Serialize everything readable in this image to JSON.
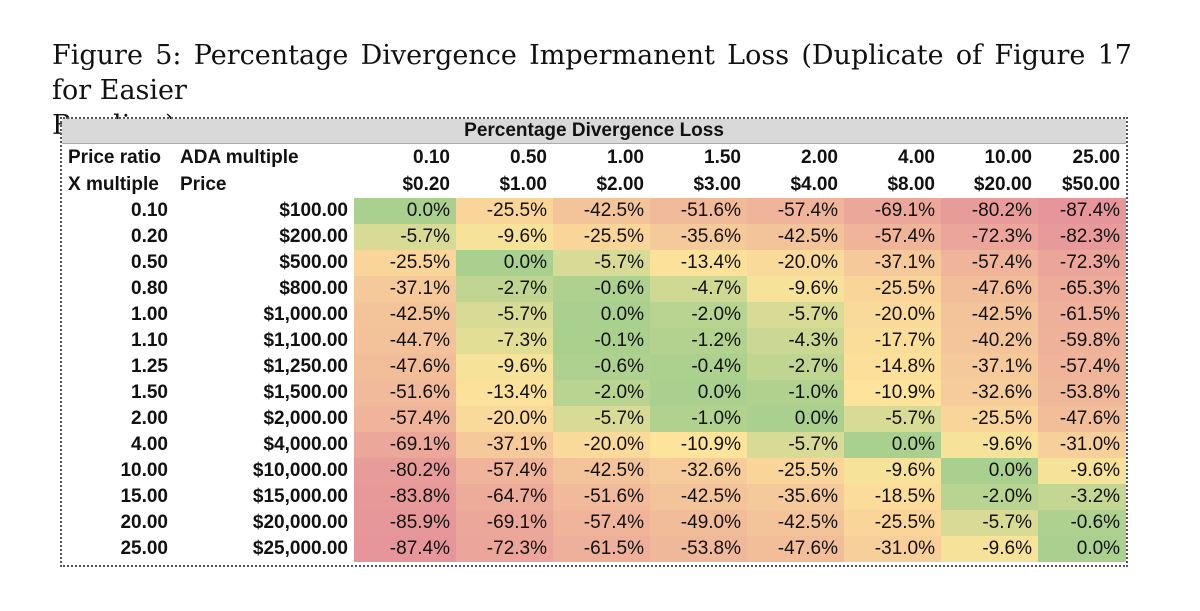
{
  "caption": {
    "line1": "Figure 5: Percentage Divergence Impermanent Loss (Duplicate of Figure 17 for Easier",
    "line2": "Reading)."
  },
  "table": {
    "title": "Percentage Divergence Loss",
    "row_header_1": [
      "Price ratio",
      "ADA multiple"
    ],
    "row_header_2": [
      "X multiple",
      "Price"
    ],
    "columns": [
      {
        "multiple": "0.10",
        "price": "$0.20"
      },
      {
        "multiple": "0.50",
        "price": "$1.00"
      },
      {
        "multiple": "1.00",
        "price": "$2.00"
      },
      {
        "multiple": "1.50",
        "price": "$3.00"
      },
      {
        "multiple": "2.00",
        "price": "$4.00"
      },
      {
        "multiple": "4.00",
        "price": "$8.00"
      },
      {
        "multiple": "10.00",
        "price": "$20.00"
      },
      {
        "multiple": "25.00",
        "price": "$50.00"
      }
    ],
    "rows": [
      {
        "x": "0.10",
        "price": "$100.00",
        "cells": [
          "0.0%",
          "-25.5%",
          "-42.5%",
          "-51.6%",
          "-57.4%",
          "-69.1%",
          "-80.2%",
          "-87.4%"
        ]
      },
      {
        "x": "0.20",
        "price": "$200.00",
        "cells": [
          "-5.7%",
          "-9.6%",
          "-25.5%",
          "-35.6%",
          "-42.5%",
          "-57.4%",
          "-72.3%",
          "-82.3%"
        ]
      },
      {
        "x": "0.50",
        "price": "$500.00",
        "cells": [
          "-25.5%",
          "0.0%",
          "-5.7%",
          "-13.4%",
          "-20.0%",
          "-37.1%",
          "-57.4%",
          "-72.3%"
        ]
      },
      {
        "x": "0.80",
        "price": "$800.00",
        "cells": [
          "-37.1%",
          "-2.7%",
          "-0.6%",
          "-4.7%",
          "-9.6%",
          "-25.5%",
          "-47.6%",
          "-65.3%"
        ]
      },
      {
        "x": "1.00",
        "price": "$1,000.00",
        "cells": [
          "-42.5%",
          "-5.7%",
          "0.0%",
          "-2.0%",
          "-5.7%",
          "-20.0%",
          "-42.5%",
          "-61.5%"
        ]
      },
      {
        "x": "1.10",
        "price": "$1,100.00",
        "cells": [
          "-44.7%",
          "-7.3%",
          "-0.1%",
          "-1.2%",
          "-4.3%",
          "-17.7%",
          "-40.2%",
          "-59.8%"
        ]
      },
      {
        "x": "1.25",
        "price": "$1,250.00",
        "cells": [
          "-47.6%",
          "-9.6%",
          "-0.6%",
          "-0.4%",
          "-2.7%",
          "-14.8%",
          "-37.1%",
          "-57.4%"
        ]
      },
      {
        "x": "1.50",
        "price": "$1,500.00",
        "cells": [
          "-51.6%",
          "-13.4%",
          "-2.0%",
          "0.0%",
          "-1.0%",
          "-10.9%",
          "-32.6%",
          "-53.8%"
        ]
      },
      {
        "x": "2.00",
        "price": "$2,000.00",
        "cells": [
          "-57.4%",
          "-20.0%",
          "-5.7%",
          "-1.0%",
          "0.0%",
          "-5.7%",
          "-25.5%",
          "-47.6%"
        ]
      },
      {
        "x": "4.00",
        "price": "$4,000.00",
        "cells": [
          "-69.1%",
          "-37.1%",
          "-20.0%",
          "-10.9%",
          "-5.7%",
          "0.0%",
          "-9.6%",
          "-31.0%"
        ]
      },
      {
        "x": "10.00",
        "price": "$10,000.00",
        "cells": [
          "-80.2%",
          "-57.4%",
          "-42.5%",
          "-32.6%",
          "-25.5%",
          "-9.6%",
          "0.0%",
          "-9.6%"
        ]
      },
      {
        "x": "15.00",
        "price": "$15,000.00",
        "cells": [
          "-83.8%",
          "-64.7%",
          "-51.6%",
          "-42.5%",
          "-35.6%",
          "-18.5%",
          "-2.0%",
          "-3.2%"
        ]
      },
      {
        "x": "20.00",
        "price": "$20,000.00",
        "cells": [
          "-85.9%",
          "-69.1%",
          "-57.4%",
          "-49.0%",
          "-42.5%",
          "-25.5%",
          "-5.7%",
          "-0.6%"
        ]
      },
      {
        "x": "25.00",
        "price": "$25,000.00",
        "cells": [
          "-87.4%",
          "-72.3%",
          "-61.5%",
          "-53.8%",
          "-47.6%",
          "-31.0%",
          "-9.6%",
          "0.0%"
        ]
      }
    ]
  },
  "colors": {
    "scale_good": "#a9d08e",
    "scale_mid": "#fde49a",
    "scale_bad": "#e6959a",
    "title_bg": "#d9d9d9"
  }
}
